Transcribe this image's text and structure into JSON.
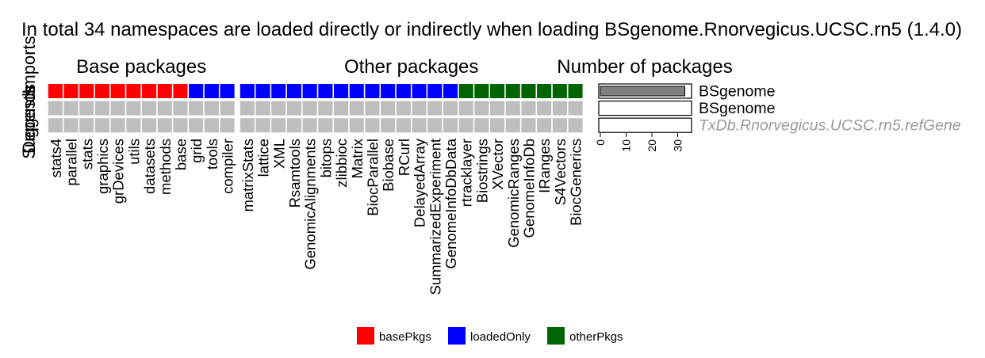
{
  "chart_data": {
    "type": "heatmap",
    "title": "In total 34 namespaces are loaded directly or indirectly when loading BSgenome.Rnorvegicus.UCSC.rn5 (1.4.0)",
    "panels": [
      {
        "title": "Base packages",
        "columns": [
          "stats4",
          "parallel",
          "stats",
          "graphics",
          "grDevices",
          "utils",
          "datasets",
          "methods",
          "base",
          "grid",
          "tools",
          "compiler"
        ]
      },
      {
        "title": "Other packages",
        "columns": [
          "matrixStats",
          "lattice",
          "XML",
          "Rsamtools",
          "GenomicAlignments",
          "bitops",
          "zlibbioc",
          "Matrix",
          "BiocParallel",
          "Biobase",
          "RCurl",
          "DelayedArray",
          "SummarizedExperiment",
          "GenomeInfoDbData",
          "rtracklayer",
          "Biostrings",
          "XVector",
          "GenomicRanges",
          "GenomeInfoDb",
          "IRanges",
          "S4Vectors",
          "BiocGenerics"
        ]
      }
    ],
    "row_labels": [
      "Imports",
      "Depends",
      "Suggests"
    ],
    "first_row_types": [
      [
        "basePkgs",
        "basePkgs",
        "basePkgs",
        "basePkgs",
        "basePkgs",
        "basePkgs",
        "basePkgs",
        "basePkgs",
        "basePkgs",
        "loadedOnly",
        "loadedOnly",
        "loadedOnly"
      ],
      [
        "loadedOnly",
        "loadedOnly",
        "loadedOnly",
        "loadedOnly",
        "loadedOnly",
        "loadedOnly",
        "loadedOnly",
        "loadedOnly",
        "loadedOnly",
        "loadedOnly",
        "loadedOnly",
        "loadedOnly",
        "loadedOnly",
        "loadedOnly",
        "otherPkgs",
        "otherPkgs",
        "otherPkgs",
        "otherPkgs",
        "otherPkgs",
        "otherPkgs",
        "otherPkgs",
        "otherPkgs"
      ]
    ],
    "empty_color": "#bebebe",
    "colors": {
      "basePkgs": "#ff0000",
      "loadedOnly": "#0000ff",
      "otherPkgs": "#006400"
    },
    "legend": [
      "basePkgs",
      "loadedOnly",
      "otherPkgs"
    ],
    "bar_panel": {
      "title": "Number of packages",
      "bars": [
        {
          "label": "BSgenome",
          "value": 34,
          "fill": "#808080",
          "label_style": "normal"
        },
        {
          "label": "BSgenome",
          "value": 0,
          "fill": "#ffffff",
          "label_style": "normal"
        },
        {
          "label": "TxDb.Rnorvegicus.UCSC.rn5.refGene",
          "value": 0,
          "fill": "#ffffff",
          "label_style": "italic-grey"
        }
      ],
      "xlim": [
        0,
        36
      ],
      "xticks": [
        0,
        10,
        20,
        30
      ]
    }
  }
}
